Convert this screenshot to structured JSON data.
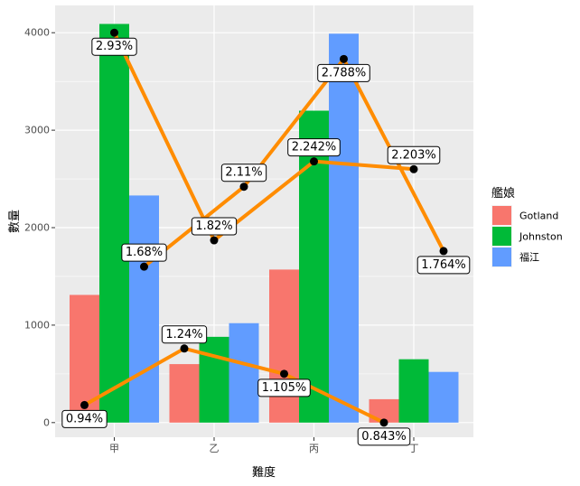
{
  "chart_data": {
    "type": "bar",
    "categories": [
      "甲",
      "乙",
      "丙",
      "丁"
    ],
    "series": [
      {
        "name": "Gotland",
        "values": [
          1310,
          600,
          1570,
          240
        ],
        "color": "#F8766D"
      },
      {
        "name": "Johnston",
        "values": [
          4090,
          880,
          3200,
          650
        ],
        "color": "#00BA38"
      },
      {
        "name": "福江",
        "values": [
          2330,
          1020,
          3990,
          520
        ],
        "color": "#619CFF"
      }
    ],
    "xlabel": "難度",
    "ylabel": "數量",
    "ylim": [
      -150,
      4280
    ],
    "yticks": [
      0,
      1000,
      2000,
      3000,
      4000
    ],
    "legend": {
      "title": "艦娘",
      "position": "right"
    },
    "line_color": "#FF8C00",
    "point_color": "#000000",
    "lines": [
      {
        "points": [
          {
            "x": "甲",
            "offset": "left",
            "y": 180,
            "label": "0.94%",
            "label_side": "below"
          },
          {
            "x": "乙",
            "offset": "left",
            "y": 760,
            "label": "1.24%",
            "label_side": "above"
          },
          {
            "x": "丙",
            "offset": "left",
            "y": 500,
            "label": "1.105%",
            "label_side": "below"
          },
          {
            "x": "丁",
            "offset": "left",
            "y": 0,
            "label": "0.843%",
            "label_side": "below"
          }
        ]
      },
      {
        "points": [
          {
            "x": "甲",
            "offset": "center",
            "y": 4000,
            "label": "2.93%",
            "label_side": "below"
          },
          {
            "x": "乙",
            "offset": "center",
            "y": 1870,
            "label": "1.82%",
            "label_side": "above"
          },
          {
            "x": "丙",
            "offset": "center",
            "y": 2680,
            "label": "2.242%",
            "label_side": "above"
          },
          {
            "x": "丁",
            "offset": "center",
            "y": 2600,
            "label": "2.203%",
            "label_side": "above"
          }
        ]
      },
      {
        "points": [
          {
            "x": "甲",
            "offset": "right",
            "y": 1600,
            "label": "1.68%",
            "label_side": "above"
          },
          {
            "x": "乙",
            "offset": "right",
            "y": 2420,
            "label": "2.11%",
            "label_side": "above"
          },
          {
            "x": "丙",
            "offset": "right",
            "y": 3730,
            "label": "2.788%",
            "label_side": "below"
          },
          {
            "x": "丁",
            "offset": "right",
            "y": 1760,
            "label": "1.764%",
            "label_side": "below"
          }
        ]
      }
    ]
  }
}
